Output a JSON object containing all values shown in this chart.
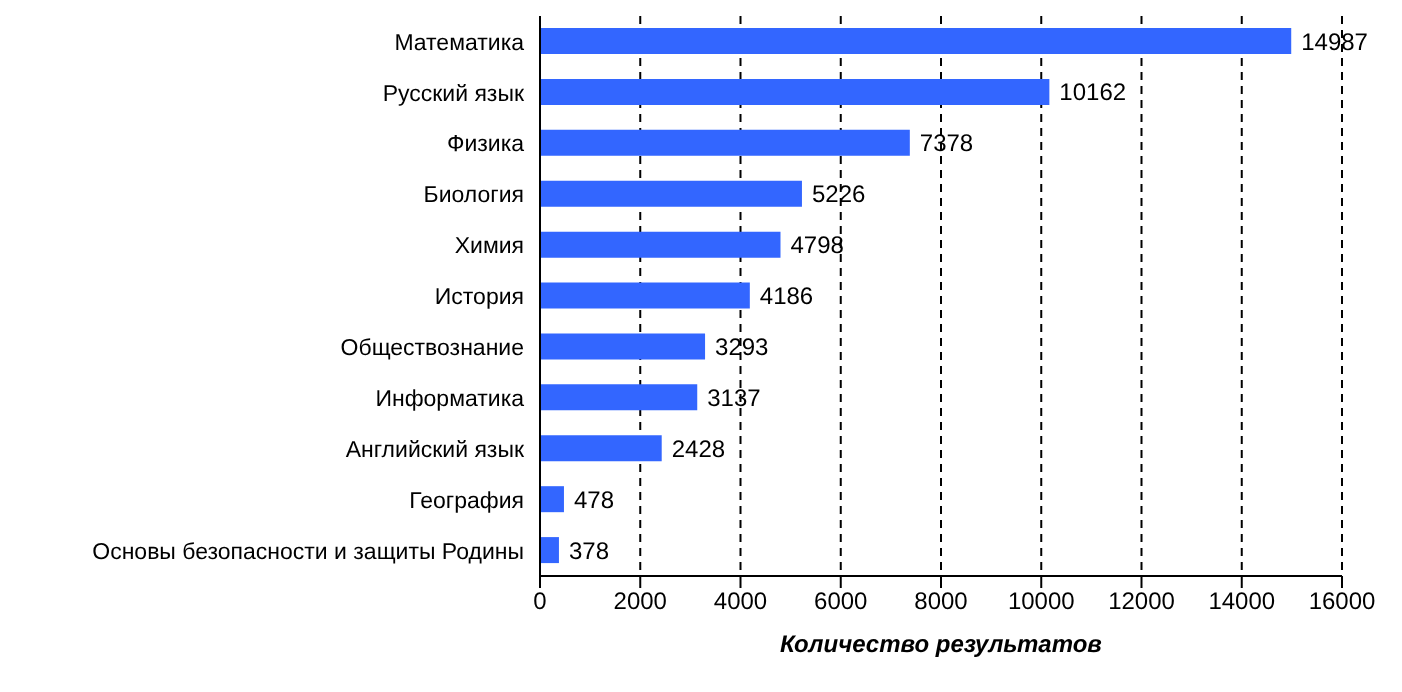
{
  "chart_data": {
    "type": "bar",
    "orientation": "horizontal",
    "xlabel": "Количество результатов",
    "categories": [
      "Математика",
      "Русский язык",
      "Физика",
      "Биология",
      "Химия",
      "История",
      "Обществознание",
      "Информатика",
      "Английский язык",
      "География",
      "Основы безопасности и защиты Родины"
    ],
    "values": [
      14987,
      10162,
      7378,
      5226,
      4798,
      4186,
      3293,
      3137,
      2428,
      478,
      378
    ],
    "color": "#3366ff",
    "xlim": [
      0,
      16000
    ],
    "xticks": [
      0,
      2000,
      4000,
      6000,
      8000,
      10000,
      12000,
      14000,
      16000
    ],
    "grid": "x",
    "data_labels": true
  }
}
